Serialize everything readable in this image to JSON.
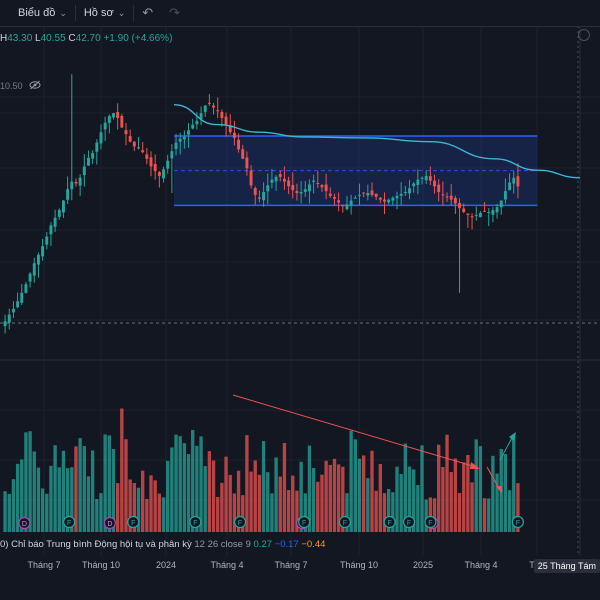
{
  "toolbar": {
    "chart_label": "Biểu đồ",
    "profile_label": "Hồ sơ",
    "undo_icon": "undo-icon",
    "redo_icon": "redo-icon"
  },
  "ohlc": {
    "h_label": "H",
    "h_value": "43.30",
    "l_label": "L",
    "l_value": "40.55",
    "c_label": "C",
    "c_value": "42.70",
    "change": "+1.90 (+4.66%)"
  },
  "sub_row": {
    "value": "10.50"
  },
  "macd": {
    "prefix": "0)",
    "title": "Chỉ báo Trung bình Động hội tụ và phân kỳ",
    "params": "12 26 close 9",
    "v1": "0.27",
    "v2": "−0.17",
    "v3": "−0.44"
  },
  "time_axis": {
    "ticks": [
      "Tháng 7",
      "Tháng 10",
      "2024",
      "Tháng 4",
      "Tháng 7",
      "Tháng 10",
      "2025",
      "Tháng 4",
      "Thá"
    ],
    "date_badge": "25 Tháng Tám"
  },
  "colors": {
    "up": "#26a69a",
    "down": "#ef5350",
    "ma_line": "#3fb4d6",
    "rect_border": "#2962ff",
    "rect_fill": "#1e3a8a",
    "arrow_red": "#ef5350",
    "arrow_green": "#26a69a"
  },
  "chart_data": {
    "type": "candlestick",
    "x_range": [
      "2023-05",
      "2025-08"
    ],
    "y_range": [
      26,
      56
    ],
    "ohlc_last": {
      "open": 40.8,
      "high": 43.3,
      "low": 40.55,
      "close": 42.7
    },
    "price": [
      28.5,
      29.2,
      29.8,
      30.6,
      31.5,
      32.4,
      33.5,
      34.6,
      35.5,
      36.4,
      37.4,
      38.6,
      39.4,
      40.2,
      41.2,
      42.4,
      43.2,
      43.0,
      43.6,
      44.8,
      45.7,
      46.2,
      47.3,
      48.4,
      49.4,
      50.1,
      50.4,
      49.9,
      48.9,
      48.2,
      47.4,
      46.9,
      46.8,
      46.3,
      45.6,
      44.8,
      44.3,
      43.8,
      44.5,
      45.4,
      46.4,
      47.3,
      47.7,
      47.9,
      48.6,
      49.2,
      49.6,
      50.4,
      51.2,
      51.4,
      51.0,
      50.6,
      49.9,
      49.2,
      48.4,
      47.8,
      46.6,
      45.6,
      44.6,
      42.8,
      41.8,
      41.4,
      42.1,
      42.8,
      43.4,
      43.7,
      43.7,
      43.2,
      42.7,
      42.3,
      42.0,
      42.1,
      42.4,
      42.9,
      43.3,
      43.0,
      42.6,
      42.2,
      41.7,
      41.4,
      41.0,
      40.6,
      40.8,
      41.2,
      41.5,
      41.8,
      42.0,
      42.0,
      41.8,
      41.6,
      41.3,
      41.1,
      41.3,
      41.5,
      41.7,
      41.9,
      42.1,
      42.5,
      43.0,
      43.4,
      43.6,
      43.8,
      43.3,
      42.7,
      42.1,
      41.8,
      41.6,
      41.3,
      40.9,
      40.4,
      40.0,
      39.7,
      39.5,
      39.7,
      39.9,
      40.1,
      40.0,
      40.2,
      40.5,
      41.2,
      42.2,
      43.1,
      43.6,
      42.7
    ],
    "moving_average": [
      {
        "x": "2024-01",
        "y": 51.3
      },
      {
        "x": "2024-03",
        "y": 49.2
      },
      {
        "x": "2024-05",
        "y": 48.4
      },
      {
        "x": "2024-07",
        "y": 47.9
      },
      {
        "x": "2024-10",
        "y": 47.8
      },
      {
        "x": "2025-01",
        "y": 47.4
      },
      {
        "x": "2025-04",
        "y": 45.6
      },
      {
        "x": "2025-06",
        "y": 44.4
      },
      {
        "x": "2025-08",
        "y": 43.6
      }
    ],
    "range_box": {
      "start": "2024-01",
      "end": "2025-06",
      "top": 48.0,
      "bottom": 40.7
    },
    "volume_trend_note": "decreasing volume",
    "macd_signals": [
      {
        "type": "D",
        "x": "2023-06"
      },
      {
        "type": "F",
        "x": "2023-08"
      },
      {
        "type": "D",
        "x": "2023-10"
      },
      {
        "type": "F",
        "x": "2023-11"
      },
      {
        "type": "F",
        "x": "2024-02"
      },
      {
        "type": "F",
        "x": "2024-04"
      },
      {
        "type": "D",
        "x": "2024-07"
      },
      {
        "type": "F",
        "x": "2024-07"
      },
      {
        "type": "F",
        "x": "2024-09"
      },
      {
        "type": "F",
        "x": "2024-11"
      },
      {
        "type": "F",
        "x": "2024-12"
      },
      {
        "type": "D",
        "x": "2025-01"
      },
      {
        "type": "F",
        "x": "2025-01"
      },
      {
        "type": "F",
        "x": "2025-05"
      }
    ]
  }
}
